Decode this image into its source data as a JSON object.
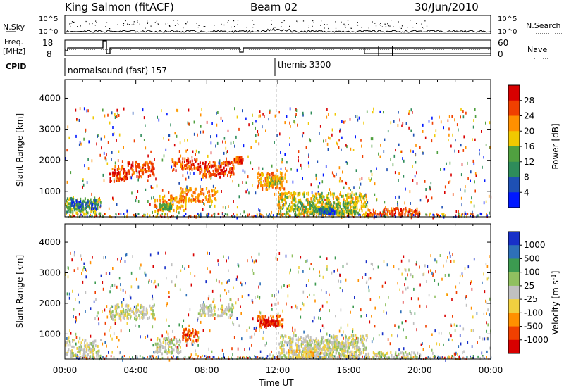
{
  "header": {
    "station": "King Salmon (fitACF)",
    "beam": "Beam 02",
    "date": "30/Jun/2010"
  },
  "top_panel": {
    "left_label": "N.Sky",
    "right_label": "N.Search",
    "y_ticks": [
      "10^5",
      "10^0"
    ]
  },
  "freq_panel": {
    "left_label_line1": "Freq.",
    "left_label_line2": "[MHz]",
    "right_label": "Nave",
    "left_ticks": [
      "18",
      "8"
    ],
    "right_ticks": [
      "60",
      "0"
    ]
  },
  "cpid": {
    "label": "CPID",
    "programs": [
      {
        "name": "normalsound (fast) 157",
        "start_hour": 0
      },
      {
        "name": "themis 3300",
        "start_hour": 12
      }
    ]
  },
  "chart_data": [
    {
      "type": "heatmap",
      "quantity": "Power",
      "ylabel": "Slant Range [km]",
      "ylim": [
        180,
        4600
      ],
      "y_ticks": [
        1000,
        2000,
        3000,
        4000
      ],
      "xlim": [
        0,
        24
      ],
      "colorbar": {
        "label": "Power [dB]",
        "ticks": [
          "28",
          "24",
          "20",
          "16",
          "12",
          "8",
          "4"
        ],
        "colors": [
          "#d80000",
          "#f04000",
          "#ff9000",
          "#f0c800",
          "#50a040",
          "#2e8c5a",
          "#1e50b4",
          "#0018ff"
        ]
      },
      "regions": [
        {
          "t0": 0.0,
          "t1": 2.0,
          "r0": 300,
          "r1": 850,
          "level": 4
        },
        {
          "t0": 0.3,
          "t1": 1.8,
          "r0": 450,
          "r1": 750,
          "level": 6
        },
        {
          "t0": 2.5,
          "t1": 3.5,
          "r0": 1350,
          "r1": 1850,
          "level": 1
        },
        {
          "t0": 3.5,
          "t1": 5.0,
          "r0": 1500,
          "r1": 2000,
          "level": 1
        },
        {
          "t0": 5.0,
          "t1": 6.8,
          "r0": 400,
          "r1": 900,
          "level": 2
        },
        {
          "t0": 5.3,
          "t1": 6.0,
          "r0": 450,
          "r1": 650,
          "level": 4
        },
        {
          "t0": 6.0,
          "t1": 7.5,
          "r0": 1700,
          "r1": 2100,
          "level": 1
        },
        {
          "t0": 6.5,
          "t1": 8.5,
          "r0": 700,
          "r1": 1150,
          "level": 2
        },
        {
          "t0": 7.5,
          "t1": 9.5,
          "r0": 1500,
          "r1": 2000,
          "level": 1
        },
        {
          "t0": 9.5,
          "t1": 10.0,
          "r0": 1950,
          "r1": 2150,
          "level": 1
        },
        {
          "t0": 10.8,
          "t1": 12.4,
          "r0": 1100,
          "r1": 1650,
          "level": 2
        },
        {
          "t0": 11.4,
          "t1": 12.2,
          "r0": 1200,
          "r1": 1500,
          "level": 3
        },
        {
          "t0": 12.0,
          "t1": 17.0,
          "r0": 250,
          "r1": 1000,
          "level": 3
        },
        {
          "t0": 12.8,
          "t1": 16.5,
          "r0": 300,
          "r1": 700,
          "level": 4
        },
        {
          "t0": 14.3,
          "t1": 15.2,
          "r0": 300,
          "r1": 500,
          "level": 6
        },
        {
          "t0": 17.0,
          "t1": 20.0,
          "r0": 250,
          "r1": 500,
          "level": 1
        }
      ]
    },
    {
      "type": "heatmap",
      "quantity": "Velocity",
      "ylabel": "Slant Range [km]",
      "ylim": [
        180,
        4600
      ],
      "y_ticks": [
        1000,
        2000,
        3000,
        4000
      ],
      "xlim": [
        0,
        24
      ],
      "xlabel": "Time UT",
      "x_ticks": [
        "00:00",
        "04:00",
        "08:00",
        "12:00",
        "16:00",
        "20:00",
        "00:00"
      ],
      "colorbar": {
        "label": "Velocity [m s^-1]",
        "ticks": [
          "1000",
          "500",
          "100",
          "25",
          "-25",
          "-100",
          "-500",
          "-1000"
        ],
        "colors": [
          "#1830c8",
          "#2e70b8",
          "#3c9a50",
          "#90c060",
          "#c0c0c0",
          "#f0d040",
          "#ff9000",
          "#f04000",
          "#d80000"
        ]
      },
      "regions": [
        {
          "t0": 0.0,
          "t1": 2.0,
          "r0": 300,
          "r1": 850,
          "level": 4
        },
        {
          "t0": 2.5,
          "t1": 5.0,
          "r0": 1500,
          "r1": 2000,
          "level": 4
        },
        {
          "t0": 5.0,
          "t1": 6.5,
          "r0": 400,
          "r1": 900,
          "level": 4
        },
        {
          "t0": 6.6,
          "t1": 7.5,
          "r0": 800,
          "r1": 1200,
          "level": 7
        },
        {
          "t0": 7.5,
          "t1": 9.5,
          "r0": 1600,
          "r1": 2000,
          "level": 4
        },
        {
          "t0": 10.8,
          "t1": 12.3,
          "r0": 1250,
          "r1": 1650,
          "level": 7
        },
        {
          "t0": 11.2,
          "t1": 12.0,
          "r0": 1300,
          "r1": 1500,
          "level": 8
        },
        {
          "t0": 12.0,
          "t1": 17.0,
          "r0": 250,
          "r1": 1000,
          "level": 4
        },
        {
          "t0": 12.5,
          "t1": 14.0,
          "r0": 250,
          "r1": 500,
          "level": 5
        },
        {
          "t0": 13.5,
          "t1": 16.5,
          "r0": 500,
          "r1": 800,
          "level": 4
        },
        {
          "t0": 17.0,
          "t1": 20.0,
          "r0": 250,
          "r1": 450,
          "level": 4
        }
      ]
    }
  ]
}
